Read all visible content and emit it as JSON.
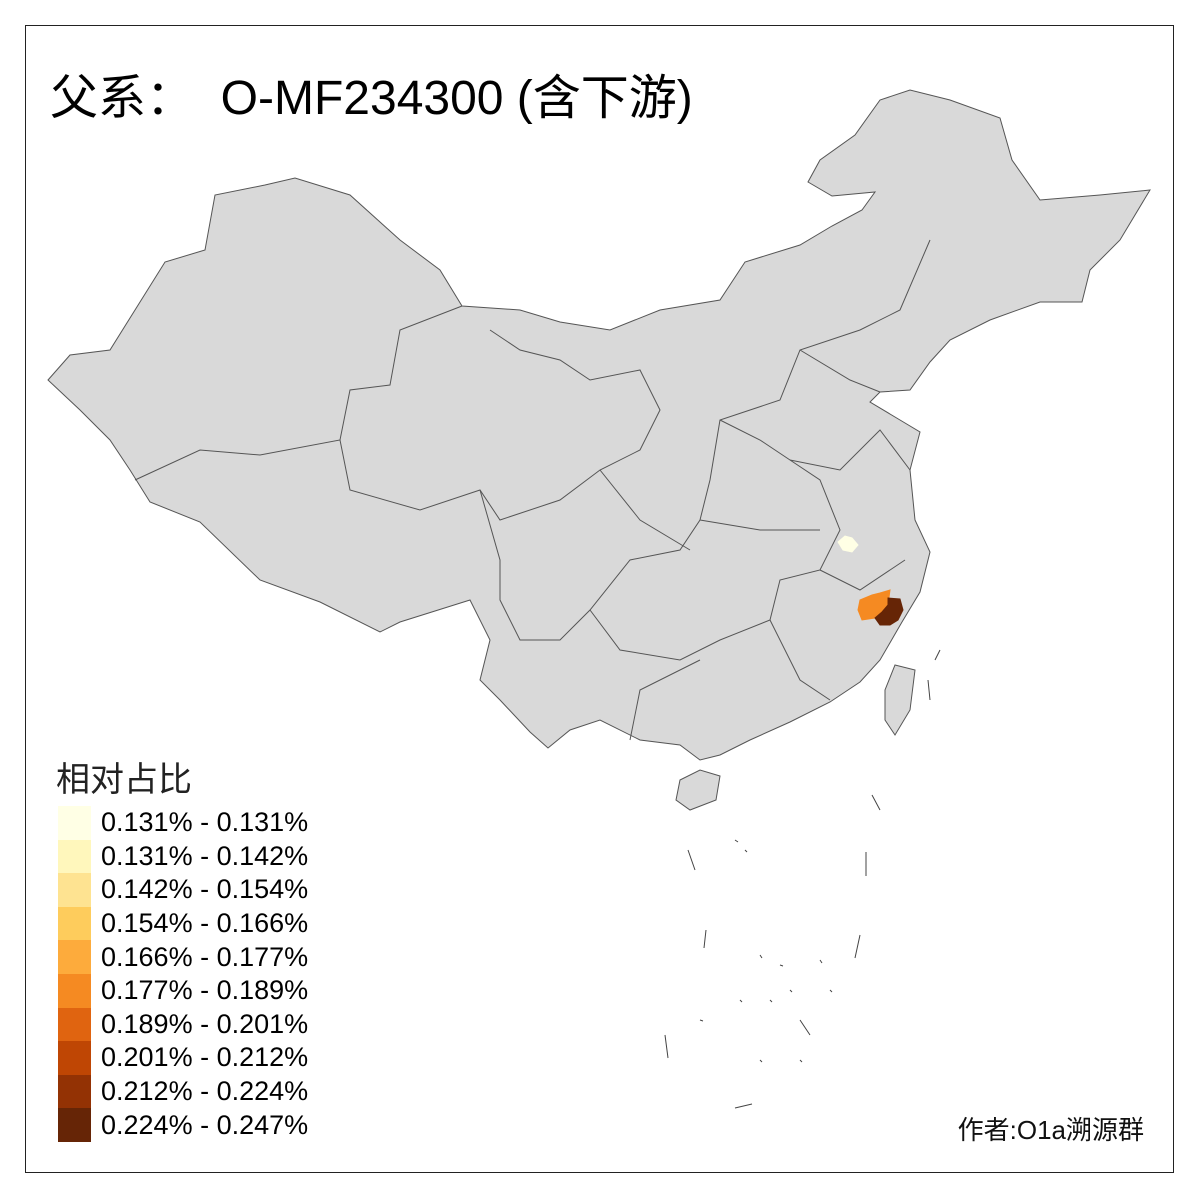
{
  "title": "父系：  O-MF234300 (含下游)",
  "legend": {
    "title": "相对占比",
    "items": [
      {
        "label": "0.131% - 0.131%",
        "color": "#FFFFE5"
      },
      {
        "label": "0.131% - 0.142%",
        "color": "#FFF7BC"
      },
      {
        "label": "0.142% - 0.154%",
        "color": "#FEE391"
      },
      {
        "label": "0.154% - 0.166%",
        "color": "#FECC5C"
      },
      {
        "label": "0.166% - 0.177%",
        "color": "#FDAB3C"
      },
      {
        "label": "0.177% - 0.189%",
        "color": "#F58A22"
      },
      {
        "label": "0.189% - 0.201%",
        "color": "#E06410"
      },
      {
        "label": "0.201% - 0.212%",
        "color": "#BF4604"
      },
      {
        "label": "0.212% - 0.224%",
        "color": "#933204"
      },
      {
        "label": "0.224% - 0.247%",
        "color": "#662506"
      }
    ]
  },
  "map": {
    "base_color": "#D9D9D9",
    "border_color": "#555555",
    "highlighted_regions": [
      {
        "class": "0.131% - 0.131%",
        "color": "#FFFFE5"
      },
      {
        "class": "0.177% - 0.189%",
        "color": "#F58A22"
      },
      {
        "class": "0.224% - 0.247%",
        "color": "#662506"
      }
    ]
  },
  "author": "作者:O1a溯源群"
}
